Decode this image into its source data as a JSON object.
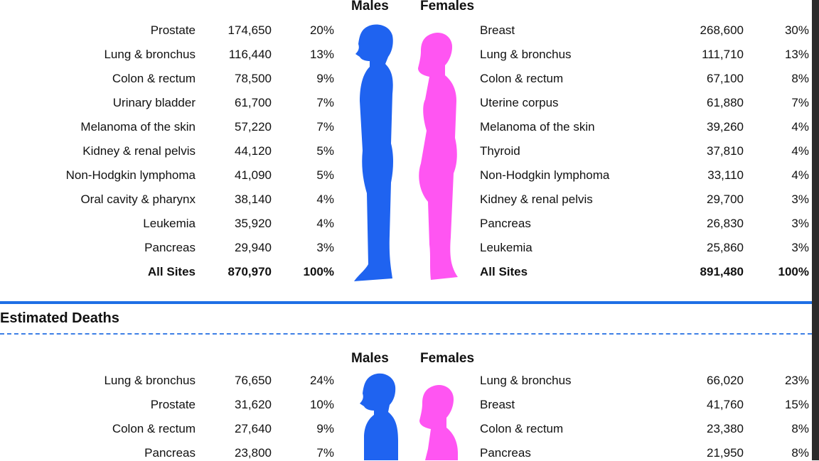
{
  "incidence": {
    "males_header": "Males",
    "females_header": "Females",
    "males": [
      {
        "site": "Prostate",
        "count": "174,650",
        "pct": "20%"
      },
      {
        "site": "Lung & bronchus",
        "count": "116,440",
        "pct": "13%"
      },
      {
        "site": "Colon & rectum",
        "count": "78,500",
        "pct": "9%"
      },
      {
        "site": "Urinary bladder",
        "count": "61,700",
        "pct": "7%"
      },
      {
        "site": "Melanoma of the skin",
        "count": "57,220",
        "pct": "7%"
      },
      {
        "site": "Kidney & renal pelvis",
        "count": "44,120",
        "pct": "5%"
      },
      {
        "site": "Non-Hodgkin lymphoma",
        "count": "41,090",
        "pct": "5%"
      },
      {
        "site": "Oral cavity & pharynx",
        "count": "38,140",
        "pct": "4%"
      },
      {
        "site": "Leukemia",
        "count": "35,920",
        "pct": "4%"
      },
      {
        "site": "Pancreas",
        "count": "29,940",
        "pct": "3%"
      }
    ],
    "males_total": {
      "site": "All Sites",
      "count": "870,970",
      "pct": "100%"
    },
    "females": [
      {
        "site": "Breast",
        "count": "268,600",
        "pct": "30%"
      },
      {
        "site": "Lung & bronchus",
        "count": "111,710",
        "pct": "13%"
      },
      {
        "site": "Colon & rectum",
        "count": "67,100",
        "pct": "8%"
      },
      {
        "site": "Uterine corpus",
        "count": "61,880",
        "pct": "7%"
      },
      {
        "site": "Melanoma of the skin",
        "count": "39,260",
        "pct": "4%"
      },
      {
        "site": "Thyroid",
        "count": "37,810",
        "pct": "4%"
      },
      {
        "site": "Non-Hodgkin lymphoma",
        "count": "33,110",
        "pct": "4%"
      },
      {
        "site": "Kidney & renal pelvis",
        "count": "29,700",
        "pct": "3%"
      },
      {
        "site": "Pancreas",
        "count": "26,830",
        "pct": "3%"
      },
      {
        "site": "Leukemia",
        "count": "25,860",
        "pct": "3%"
      }
    ],
    "females_total": {
      "site": "All Sites",
      "count": "891,480",
      "pct": "100%"
    }
  },
  "deaths": {
    "title": "Estimated Deaths",
    "males_header": "Males",
    "females_header": "Females",
    "males": [
      {
        "site": "Lung & bronchus",
        "count": "76,650",
        "pct": "24%"
      },
      {
        "site": "Prostate",
        "count": "31,620",
        "pct": "10%"
      },
      {
        "site": "Colon & rectum",
        "count": "27,640",
        "pct": "9%"
      },
      {
        "site": "Pancreas",
        "count": "23,800",
        "pct": "7%"
      }
    ],
    "females": [
      {
        "site": "Lung & bronchus",
        "count": "66,020",
        "pct": "23%"
      },
      {
        "site": "Breast",
        "count": "41,760",
        "pct": "15%"
      },
      {
        "site": "Colon & rectum",
        "count": "23,380",
        "pct": "8%"
      },
      {
        "site": "Pancreas",
        "count": "21,950",
        "pct": "8%"
      }
    ]
  },
  "colors": {
    "male": "#1f63f0",
    "female": "#ff55f2",
    "rule": "#1f6fe5"
  }
}
